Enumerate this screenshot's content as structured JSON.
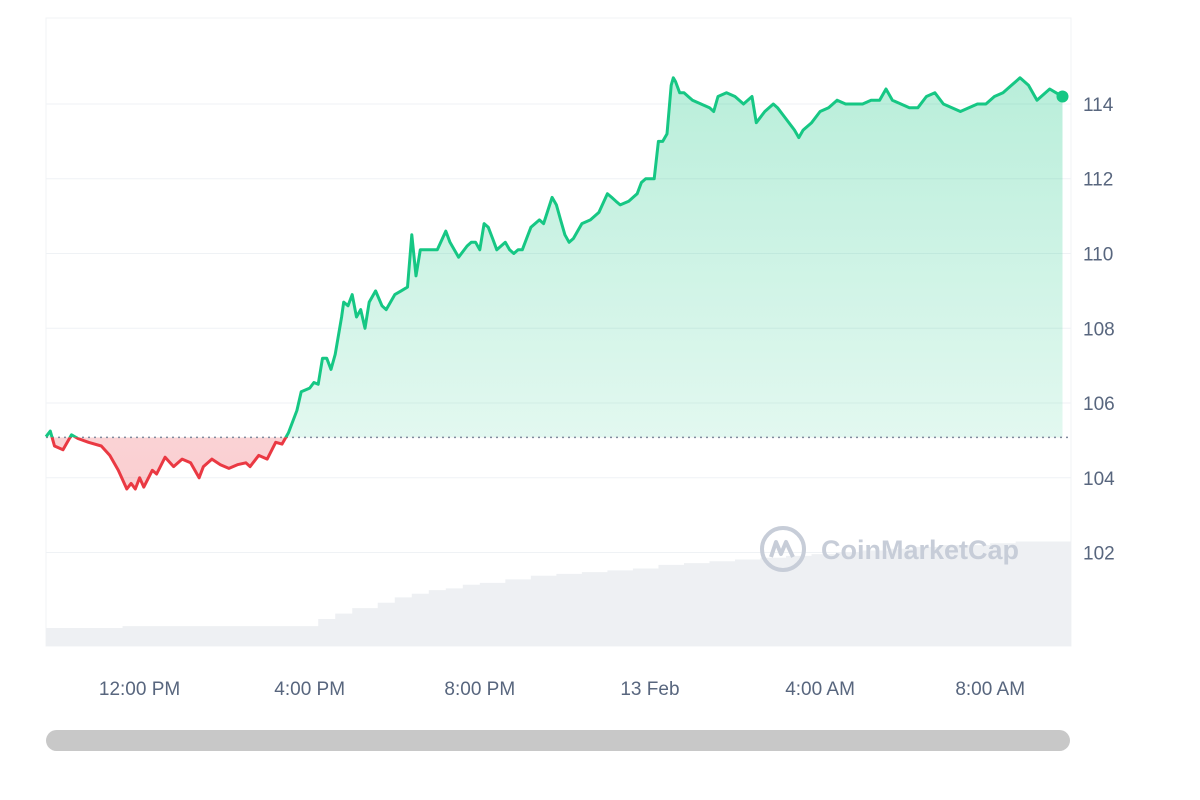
{
  "watermark": {
    "text": "CoinMarketCap",
    "icon": "coinmarketcap-logo-icon"
  },
  "colors": {
    "up": "#16c784",
    "down": "#ea3943",
    "grid": "#eff2f5",
    "baseline": "#808a9d",
    "volume": "#eef0f3",
    "axis_text": "#58667e"
  },
  "chart_data": {
    "type": "line",
    "title": "",
    "xlabel": "",
    "ylabel": "",
    "ylim": [
      99.5,
      116.3
    ],
    "y_ticks": [
      "102",
      "104",
      "106",
      "108",
      "110",
      "112",
      "114"
    ],
    "x_ticks": [
      "12:00 PM",
      "4:00 PM",
      "8:00 PM",
      "13 Feb",
      "4:00 AM",
      "8:00 AM"
    ],
    "x_tick_hours": [
      12,
      16,
      20,
      24,
      28,
      32
    ],
    "x_range_hours": [
      9.8,
      33.9
    ],
    "baseline": 105.08,
    "grid": true,
    "volume_panel": true,
    "series": [
      {
        "values": [
          [
            9.8,
            105.1
          ],
          [
            9.9,
            105.25
          ],
          [
            10.0,
            104.85
          ],
          [
            10.2,
            104.75
          ],
          [
            10.4,
            105.15
          ],
          [
            10.55,
            105.05
          ],
          [
            10.8,
            104.95
          ],
          [
            11.1,
            104.85
          ],
          [
            11.3,
            104.6
          ],
          [
            11.5,
            104.2
          ],
          [
            11.7,
            103.7
          ],
          [
            11.8,
            103.85
          ],
          [
            11.9,
            103.7
          ],
          [
            12.0,
            104.0
          ],
          [
            12.1,
            103.75
          ],
          [
            12.3,
            104.2
          ],
          [
            12.4,
            104.1
          ],
          [
            12.6,
            104.55
          ],
          [
            12.8,
            104.3
          ],
          [
            13.0,
            104.5
          ],
          [
            13.2,
            104.4
          ],
          [
            13.4,
            104.0
          ],
          [
            13.5,
            104.3
          ],
          [
            13.7,
            104.5
          ],
          [
            13.9,
            104.35
          ],
          [
            14.1,
            104.25
          ],
          [
            14.3,
            104.35
          ],
          [
            14.5,
            104.4
          ],
          [
            14.6,
            104.3
          ],
          [
            14.8,
            104.6
          ],
          [
            15.0,
            104.5
          ],
          [
            15.2,
            104.95
          ],
          [
            15.35,
            104.9
          ],
          [
            15.5,
            105.2
          ],
          [
            15.7,
            105.8
          ],
          [
            15.8,
            106.3
          ],
          [
            16.0,
            106.4
          ],
          [
            16.1,
            106.55
          ],
          [
            16.2,
            106.5
          ],
          [
            16.3,
            107.2
          ],
          [
            16.4,
            107.2
          ],
          [
            16.5,
            106.9
          ],
          [
            16.6,
            107.3
          ],
          [
            16.75,
            108.3
          ],
          [
            16.8,
            108.7
          ],
          [
            16.9,
            108.6
          ],
          [
            17.0,
            108.9
          ],
          [
            17.1,
            108.3
          ],
          [
            17.2,
            108.5
          ],
          [
            17.3,
            108.0
          ],
          [
            17.4,
            108.7
          ],
          [
            17.55,
            109.0
          ],
          [
            17.7,
            108.6
          ],
          [
            17.8,
            108.5
          ],
          [
            17.9,
            108.7
          ],
          [
            18.0,
            108.9
          ],
          [
            18.15,
            109.0
          ],
          [
            18.3,
            109.1
          ],
          [
            18.4,
            110.5
          ],
          [
            18.5,
            109.4
          ],
          [
            18.6,
            110.1
          ],
          [
            18.7,
            110.1
          ],
          [
            18.8,
            110.1
          ],
          [
            18.9,
            110.1
          ],
          [
            19.0,
            110.1
          ],
          [
            19.2,
            110.6
          ],
          [
            19.3,
            110.3
          ],
          [
            19.4,
            110.1
          ],
          [
            19.5,
            109.9
          ],
          [
            19.7,
            110.2
          ],
          [
            19.8,
            110.3
          ],
          [
            19.9,
            110.3
          ],
          [
            20.0,
            110.1
          ],
          [
            20.1,
            110.8
          ],
          [
            20.2,
            110.7
          ],
          [
            20.3,
            110.4
          ],
          [
            20.4,
            110.1
          ],
          [
            20.6,
            110.3
          ],
          [
            20.7,
            110.1
          ],
          [
            20.8,
            110.0
          ],
          [
            20.9,
            110.1
          ],
          [
            21.0,
            110.1
          ],
          [
            21.1,
            110.4
          ],
          [
            21.2,
            110.7
          ],
          [
            21.4,
            110.9
          ],
          [
            21.5,
            110.8
          ],
          [
            21.7,
            111.5
          ],
          [
            21.8,
            111.3
          ],
          [
            21.9,
            110.9
          ],
          [
            22.0,
            110.5
          ],
          [
            22.1,
            110.3
          ],
          [
            22.2,
            110.4
          ],
          [
            22.3,
            110.6
          ],
          [
            22.4,
            110.8
          ],
          [
            22.6,
            110.9
          ],
          [
            22.8,
            111.1
          ],
          [
            23.0,
            111.6
          ],
          [
            23.1,
            111.5
          ],
          [
            23.2,
            111.4
          ],
          [
            23.3,
            111.3
          ],
          [
            23.5,
            111.4
          ],
          [
            23.7,
            111.6
          ],
          [
            23.8,
            111.9
          ],
          [
            23.9,
            112.0
          ],
          [
            24.1,
            112.0
          ],
          [
            24.2,
            113.0
          ],
          [
            24.3,
            113.0
          ],
          [
            24.4,
            113.2
          ],
          [
            24.5,
            114.5
          ],
          [
            24.55,
            114.7
          ],
          [
            24.6,
            114.6
          ],
          [
            24.7,
            114.3
          ],
          [
            24.8,
            114.3
          ],
          [
            24.9,
            114.2
          ],
          [
            25.0,
            114.1
          ],
          [
            25.2,
            114.0
          ],
          [
            25.4,
            113.9
          ],
          [
            25.5,
            113.8
          ],
          [
            25.6,
            114.2
          ],
          [
            25.8,
            114.3
          ],
          [
            26.0,
            114.2
          ],
          [
            26.2,
            114.0
          ],
          [
            26.4,
            114.2
          ],
          [
            26.5,
            113.5
          ],
          [
            26.7,
            113.8
          ],
          [
            26.9,
            114.0
          ],
          [
            27.0,
            113.9
          ],
          [
            27.2,
            113.6
          ],
          [
            27.4,
            113.3
          ],
          [
            27.5,
            113.1
          ],
          [
            27.6,
            113.3
          ],
          [
            27.8,
            113.5
          ],
          [
            28.0,
            113.8
          ],
          [
            28.2,
            113.9
          ],
          [
            28.4,
            114.1
          ],
          [
            28.6,
            114.0
          ],
          [
            28.8,
            114.0
          ],
          [
            29.0,
            114.0
          ],
          [
            29.2,
            114.1
          ],
          [
            29.4,
            114.1
          ],
          [
            29.55,
            114.4
          ],
          [
            29.7,
            114.1
          ],
          [
            29.9,
            114.0
          ],
          [
            30.1,
            113.9
          ],
          [
            30.3,
            113.9
          ],
          [
            30.5,
            114.2
          ],
          [
            30.7,
            114.3
          ],
          [
            30.9,
            114.0
          ],
          [
            31.1,
            113.9
          ],
          [
            31.3,
            113.8
          ],
          [
            31.5,
            113.9
          ],
          [
            31.7,
            114.0
          ],
          [
            31.9,
            114.0
          ],
          [
            32.1,
            114.2
          ],
          [
            32.3,
            114.3
          ],
          [
            32.5,
            114.5
          ],
          [
            32.7,
            114.7
          ],
          [
            32.9,
            114.5
          ],
          [
            33.1,
            114.1
          ],
          [
            33.2,
            114.2
          ],
          [
            33.4,
            114.4
          ],
          [
            33.55,
            114.3
          ],
          [
            33.7,
            114.2
          ]
        ]
      }
    ],
    "volume": [
      [
        9.8,
        0.1
      ],
      [
        10.4,
        0.1
      ],
      [
        11.0,
        0.1
      ],
      [
        11.6,
        0.11
      ],
      [
        12.2,
        0.11
      ],
      [
        12.8,
        0.11
      ],
      [
        13.4,
        0.11
      ],
      [
        14.0,
        0.11
      ],
      [
        14.6,
        0.11
      ],
      [
        15.2,
        0.11
      ],
      [
        15.8,
        0.11
      ],
      [
        16.2,
        0.15
      ],
      [
        16.6,
        0.18
      ],
      [
        17.0,
        0.21
      ],
      [
        17.6,
        0.24
      ],
      [
        18.0,
        0.27
      ],
      [
        18.4,
        0.29
      ],
      [
        18.8,
        0.31
      ],
      [
        19.2,
        0.32
      ],
      [
        19.6,
        0.34
      ],
      [
        20.0,
        0.35
      ],
      [
        20.6,
        0.37
      ],
      [
        21.2,
        0.39
      ],
      [
        21.8,
        0.4
      ],
      [
        22.4,
        0.41
      ],
      [
        23.0,
        0.42
      ],
      [
        23.6,
        0.43
      ],
      [
        24.2,
        0.45
      ],
      [
        24.8,
        0.46
      ],
      [
        25.4,
        0.47
      ],
      [
        26.0,
        0.48
      ],
      [
        26.6,
        0.49
      ],
      [
        27.2,
        0.5
      ],
      [
        27.8,
        0.51
      ],
      [
        28.4,
        0.52
      ],
      [
        29.0,
        0.53
      ],
      [
        29.6,
        0.54
      ],
      [
        30.2,
        0.55
      ],
      [
        30.8,
        0.56
      ],
      [
        31.4,
        0.56
      ],
      [
        32.0,
        0.57
      ],
      [
        32.6,
        0.58
      ],
      [
        33.2,
        0.58
      ],
      [
        33.9,
        0.58
      ]
    ]
  },
  "scrollbar": {
    "label": ""
  }
}
